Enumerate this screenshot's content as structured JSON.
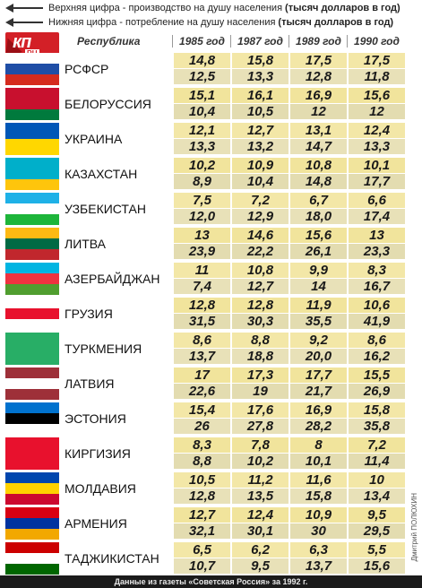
{
  "legend": {
    "top_text": "Верхняя цифра - производство на душу населения",
    "top_units": "(тысяч долларов в год)",
    "bottom_text": "Нижняя цифра - потребление на душу населения",
    "bottom_units": "(тысяч долларов в год)"
  },
  "logo": {
    "main": "кп",
    "sub": "RU"
  },
  "colors": {
    "top_cell": "#f3e7a7",
    "bottom_cell": "#e8e1b8",
    "footer": "#1b1b1b",
    "logo": "#d32027"
  },
  "header": {
    "republic": "Республика"
  },
  "credit": "Дмитрий ПОЛЮХИН",
  "source": "Данные из газеты «Советская Россия» за 1992 г.",
  "chart_data": {
    "type": "table",
    "columns": [
      "1985 год",
      "1987 год",
      "1989 год",
      "1990 год"
    ],
    "rows": [
      {
        "name": "РСФСР",
        "production": [
          "14,8",
          "15,8",
          "17,5",
          "17,5"
        ],
        "consumption": [
          "12,5",
          "13,3",
          "12,8",
          "11,8"
        ]
      },
      {
        "name": "БЕЛОРУССИЯ",
        "production": [
          "15,1",
          "16,1",
          "16,9",
          "15,6"
        ],
        "consumption": [
          "10,4",
          "10,5",
          "12",
          "12"
        ]
      },
      {
        "name": "УКРАИНА",
        "production": [
          "12,1",
          "12,7",
          "13,1",
          "12,4"
        ],
        "consumption": [
          "13,3",
          "13,2",
          "14,7",
          "13,3"
        ]
      },
      {
        "name": "КАЗАХСТАН",
        "production": [
          "10,2",
          "10,9",
          "10,8",
          "10,1"
        ],
        "consumption": [
          "8,9",
          "10,4",
          "14,8",
          "17,7"
        ]
      },
      {
        "name": "УЗБЕКИСТАН",
        "production": [
          "7,5",
          "7,2",
          "6,7",
          "6,6"
        ],
        "consumption": [
          "12,0",
          "12,9",
          "18,0",
          "17,4"
        ]
      },
      {
        "name": "ЛИТВА",
        "production": [
          "13",
          "14,6",
          "15,6",
          "13"
        ],
        "consumption": [
          "23,9",
          "22,2",
          "26,1",
          "23,3"
        ]
      },
      {
        "name": "АЗЕРБАЙДЖАН",
        "production": [
          "11",
          "10,8",
          "9,9",
          "8,3"
        ],
        "consumption": [
          "7,4",
          "12,7",
          "14",
          "16,7"
        ]
      },
      {
        "name": "ГРУЗИЯ",
        "production": [
          "12,8",
          "12,8",
          "11,9",
          "10,6"
        ],
        "consumption": [
          "31,5",
          "30,3",
          "35,5",
          "41,9"
        ]
      },
      {
        "name": "ТУРКМЕНИЯ",
        "production": [
          "8,6",
          "8,8",
          "9,2",
          "8,6"
        ],
        "consumption": [
          "13,7",
          "18,8",
          "20,0",
          "16,2"
        ]
      },
      {
        "name": "ЛАТВИЯ",
        "production": [
          "17",
          "17,3",
          "17,7",
          "15,5"
        ],
        "consumption": [
          "22,6",
          "19",
          "21,7",
          "26,9"
        ]
      },
      {
        "name": "ЭСТОНИЯ",
        "production": [
          "15,4",
          "17,6",
          "16,9",
          "15,8"
        ],
        "consumption": [
          "26",
          "27,8",
          "28,2",
          "35,8"
        ]
      },
      {
        "name": "КИРГИЗИЯ",
        "production": [
          "8,3",
          "7,8",
          "8",
          "7,2"
        ],
        "consumption": [
          "8,8",
          "10,2",
          "10,1",
          "11,4"
        ]
      },
      {
        "name": "МОЛДАВИЯ",
        "production": [
          "10,5",
          "11,2",
          "11,6",
          "10"
        ],
        "consumption": [
          "12,8",
          "13,5",
          "15,8",
          "13,4"
        ]
      },
      {
        "name": "АРМЕНИЯ",
        "production": [
          "12,7",
          "12,4",
          "10,9",
          "9,5"
        ],
        "consumption": [
          "32,1",
          "30,1",
          "30",
          "29,5"
        ]
      },
      {
        "name": "ТАДЖИКИСТАН",
        "production": [
          "6,5",
          "6,2",
          "6,3",
          "5,5"
        ],
        "consumption": [
          "10,7",
          "9,5",
          "13,7",
          "15,6"
        ]
      }
    ],
    "flags": [
      [
        "#ffffff",
        "#1f4ea6",
        "#d52b1e"
      ],
      [
        "#c8102e",
        "#c8102e",
        "#007a3d"
      ],
      [
        "#0057b7",
        "#ffd700"
      ],
      [
        "#00afca",
        "#00afca",
        "#fec50c"
      ],
      [
        "#1eb1e7",
        "#ffffff",
        "#1eb53a"
      ],
      [
        "#fdb913",
        "#006a44",
        "#c1272d"
      ],
      [
        "#00b5e2",
        "#ef3340",
        "#509e2f"
      ],
      [
        "#ffffff",
        "#e8112d",
        "#ffffff"
      ],
      [
        "#28ae66",
        "#28ae66",
        "#28ae66"
      ],
      [
        "#9e3039",
        "#ffffff",
        "#9e3039"
      ],
      [
        "#0072ce",
        "#000000",
        "#ffffff"
      ],
      [
        "#e8112d",
        "#e8112d",
        "#e8112d"
      ],
      [
        "#0046ae",
        "#ffd200",
        "#cc092f"
      ],
      [
        "#d90012",
        "#0033a0",
        "#f2a800"
      ],
      [
        "#cc0000",
        "#ffffff",
        "#006600"
      ]
    ]
  }
}
